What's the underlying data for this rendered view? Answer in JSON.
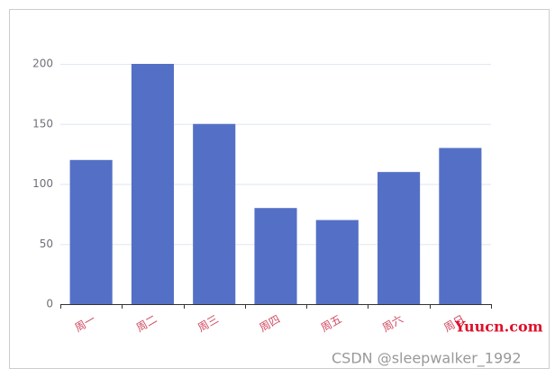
{
  "chart_data": {
    "type": "bar",
    "categories": [
      "周一",
      "周二",
      "周三",
      "周四",
      "周五",
      "周六",
      "周日"
    ],
    "values": [
      120,
      200,
      150,
      80,
      70,
      110,
      130
    ],
    "color": "#5470c6",
    "ylim": [
      0,
      200
    ],
    "yticks": [
      0,
      50,
      100,
      150,
      200
    ],
    "grid": true,
    "x_label_color": "#d14a61"
  },
  "watermarks": [
    "Yuucn.com",
    "CSDN @sleepwalker_1992"
  ]
}
